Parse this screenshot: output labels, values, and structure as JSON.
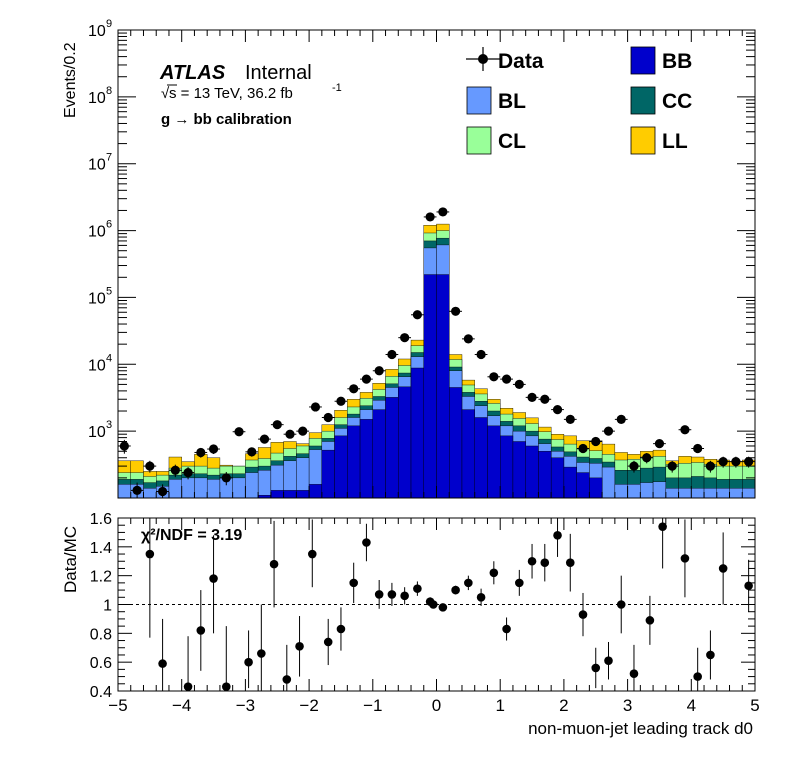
{
  "chart_data": [
    {
      "type": "stacked-histogram",
      "ylabel": "Events/0.2",
      "log_scale": true,
      "ylim": [
        100,
        1000000000
      ],
      "xlim": [
        -5,
        5
      ],
      "yticks": [
        {
          "v": 1000,
          "base": "10",
          "exp": "3"
        },
        {
          "v": 10000,
          "base": "10",
          "exp": "4"
        },
        {
          "v": 100000,
          "base": "10",
          "exp": "5"
        },
        {
          "v": 1000000,
          "base": "10",
          "exp": "6"
        },
        {
          "v": 10000000,
          "base": "10",
          "exp": "7"
        },
        {
          "v": 100000000,
          "base": "10",
          "exp": "8"
        },
        {
          "v": 1000000000,
          "base": "10",
          "exp": "9"
        }
      ],
      "atlas_label": "ATLAS",
      "atlas_sublabel": "Internal",
      "energy_label": "s = 13 TeV, 36.2 fb",
      "lumi_exponent": "-1",
      "sqrt_symbol": "√",
      "process_label": "g  → bb calibration",
      "legend": {
        "data": "Data",
        "bb": "BB",
        "bl": "BL",
        "cc": "CC",
        "cl": "CL",
        "ll": "LL"
      },
      "colors": {
        "bb": "#0000cc",
        "bl": "#6699ff",
        "cc": "#006666",
        "cl": "#99ff99",
        "ll": "#ffcc00"
      },
      "bin_width": 0.2,
      "x_bin_low": [
        -5.0,
        -4.8,
        -4.6,
        -4.4,
        -4.2,
        -4.0,
        -3.8,
        -3.6,
        -3.4,
        -3.2,
        -3.0,
        -2.8,
        -2.6,
        -2.4,
        -2.2,
        -2.0,
        -1.8,
        -1.6,
        -1.4,
        -1.2,
        -1.0,
        -0.8,
        -0.6,
        -0.4,
        -0.2,
        0.0,
        0.2,
        0.4,
        0.6,
        0.8,
        1.0,
        1.2,
        1.4,
        1.6,
        1.8,
        2.0,
        2.2,
        2.4,
        2.6,
        2.8,
        3.0,
        3.2,
        3.4,
        3.6,
        3.8,
        4.0,
        4.2,
        4.4,
        4.6,
        4.8
      ],
      "stack_BB": [
        100,
        100,
        100,
        100,
        100,
        100,
        100,
        100,
        100,
        100,
        100,
        110,
        130,
        130,
        130,
        160,
        520,
        850,
        1200,
        1500,
        2100,
        3200,
        4600,
        8800,
        220000,
        220000,
        4500,
        2100,
        1600,
        1200,
        850,
        700,
        600,
        500,
        400,
        290,
        240,
        200,
        100,
        100,
        100,
        100,
        100,
        100,
        100,
        100,
        100,
        100,
        100,
        100
      ],
      "stack_BL": [
        160,
        160,
        140,
        150,
        190,
        200,
        200,
        190,
        200,
        200,
        240,
        260,
        310,
        360,
        400,
        530,
        700,
        1100,
        1600,
        2100,
        2900,
        4500,
        6500,
        13000,
        550000,
        610000,
        8000,
        3300,
        2400,
        1700,
        1200,
        1000,
        850,
        650,
        500,
        420,
        340,
        330,
        290,
        160,
        160,
        170,
        175,
        140,
        140,
        140,
        140,
        140,
        140,
        140
      ],
      "stack_CC": [
        190,
        190,
        170,
        180,
        220,
        230,
        230,
        220,
        230,
        230,
        290,
        300,
        360,
        420,
        460,
        600,
        780,
        1250,
        1800,
        2400,
        3300,
        5100,
        7400,
        15000,
        700000,
        770000,
        9100,
        3800,
        2800,
        2000,
        1400,
        1200,
        1000,
        760,
        580,
        490,
        410,
        390,
        345,
        260,
        260,
        280,
        290,
        200,
        200,
        210,
        200,
        190,
        190,
        190
      ],
      "stack_CL": [
        240,
        240,
        210,
        220,
        280,
        300,
        300,
        280,
        300,
        300,
        370,
        390,
        470,
        550,
        600,
        780,
        1000,
        1600,
        2300,
        3100,
        4200,
        6600,
        9600,
        19000,
        920000,
        1000000,
        11800,
        4900,
        3600,
        2600,
        1800,
        1550,
        1300,
        980,
        750,
        640,
        540,
        510,
        450,
        370,
        380,
        410,
        420,
        320,
        330,
        340,
        320,
        300,
        300,
        300
      ],
      "stack_LL": [
        360,
        360,
        250,
        250,
        410,
        350,
        450,
        400,
        310,
        300,
        460,
        570,
        680,
        700,
        650,
        950,
        1250,
        2050,
        3000,
        3800,
        5200,
        8400,
        12000,
        23000,
        1200000,
        1250000,
        14000,
        5800,
        4300,
        3000,
        2200,
        1900,
        1580,
        1150,
        900,
        850,
        720,
        720,
        640,
        480,
        450,
        500,
        520,
        360,
        420,
        410,
        380,
        370,
        350,
        370
      ],
      "data_points": [
        {
          "x": -4.9,
          "y": 600,
          "ey": 140
        },
        {
          "x": -4.7,
          "y": 130,
          "ey": 40
        },
        {
          "x": -4.5,
          "y": 300,
          "ey": 60
        },
        {
          "x": -4.3,
          "y": 125,
          "ey": 35
        },
        {
          "x": -4.1,
          "y": 260,
          "ey": 55
        },
        {
          "x": -3.9,
          "y": 240,
          "ey": 50
        },
        {
          "x": -3.7,
          "y": 480,
          "ey": 80
        },
        {
          "x": -3.5,
          "y": 540,
          "ey": 85
        },
        {
          "x": -3.3,
          "y": 200,
          "ey": 45
        },
        {
          "x": -3.1,
          "y": 980,
          "ey": 120
        },
        {
          "x": -2.9,
          "y": 490,
          "ey": 75
        },
        {
          "x": -2.7,
          "y": 760,
          "ey": 100
        },
        {
          "x": -2.5,
          "y": 1250,
          "ey": 130
        },
        {
          "x": -2.3,
          "y": 900,
          "ey": 100
        },
        {
          "x": -2.1,
          "y": 1000,
          "ey": 110
        },
        {
          "x": -1.9,
          "y": 2300,
          "ey": 170
        },
        {
          "x": -1.7,
          "y": 1600,
          "ey": 140
        },
        {
          "x": -1.5,
          "y": 2800,
          "ey": 190
        },
        {
          "x": -1.3,
          "y": 4300,
          "ey": 230
        },
        {
          "x": -1.1,
          "y": 6000,
          "ey": 280
        },
        {
          "x": -0.9,
          "y": 8000,
          "ey": 320
        },
        {
          "x": -0.7,
          "y": 14000,
          "ey": 420
        },
        {
          "x": -0.5,
          "y": 25000,
          "ey": 560
        },
        {
          "x": -0.3,
          "y": 55000,
          "ey": 800
        },
        {
          "x": -0.1,
          "y": 1600000,
          "ey": 4000
        },
        {
          "x": 0.1,
          "y": 1900000,
          "ey": 4400
        },
        {
          "x": 0.3,
          "y": 62000,
          "ey": 850
        },
        {
          "x": 0.5,
          "y": 24000,
          "ey": 550
        },
        {
          "x": 0.7,
          "y": 14000,
          "ey": 420
        },
        {
          "x": 0.9,
          "y": 6500,
          "ey": 290
        },
        {
          "x": 1.1,
          "y": 6000,
          "ey": 280
        },
        {
          "x": 1.3,
          "y": 5000,
          "ey": 250
        },
        {
          "x": 1.5,
          "y": 3200,
          "ey": 200
        },
        {
          "x": 1.7,
          "y": 3000,
          "ey": 190
        },
        {
          "x": 1.9,
          "y": 2100,
          "ey": 160
        },
        {
          "x": 2.1,
          "y": 1500,
          "ey": 135
        },
        {
          "x": 2.3,
          "y": 550,
          "ey": 80
        },
        {
          "x": 2.5,
          "y": 700,
          "ey": 90
        },
        {
          "x": 2.7,
          "y": 1000,
          "ey": 110
        },
        {
          "x": 2.9,
          "y": 1500,
          "ey": 130
        },
        {
          "x": 3.1,
          "y": 300,
          "ey": 60
        },
        {
          "x": 3.3,
          "y": 400,
          "ey": 70
        },
        {
          "x": 3.5,
          "y": 650,
          "ey": 90
        },
        {
          "x": 3.7,
          "y": 300,
          "ey": 60
        },
        {
          "x": 3.9,
          "y": 1050,
          "ey": 110
        },
        {
          "x": 4.1,
          "y": 550,
          "ey": 80
        },
        {
          "x": 4.3,
          "y": 300,
          "ey": 60
        },
        {
          "x": 4.5,
          "y": 350,
          "ey": 65
        },
        {
          "x": 4.7,
          "y": 350,
          "ey": 65
        },
        {
          "x": 4.9,
          "y": 350,
          "ey": 65
        }
      ]
    },
    {
      "type": "scatter",
      "ylabel": "Data/MC",
      "xlabel": "non-muon-jet leading track d0",
      "xlim": [
        -5,
        5
      ],
      "ylim": [
        0.4,
        1.6
      ],
      "reference_line": 1,
      "stat_label": "χ²/NDF = 3.19",
      "x_ticks": [
        -5,
        -4,
        -3,
        -2,
        -1,
        0,
        1,
        2,
        3,
        4,
        5
      ],
      "x_tick_labels": [
        "−5",
        "−4",
        "−3",
        "−2",
        "−1",
        "0",
        "1",
        "2",
        "3",
        "4",
        "5"
      ],
      "y_ticks": [
        0.4,
        0.6,
        0.8,
        1,
        1.2,
        1.4,
        1.6
      ],
      "y_tick_labels": [
        "0.4",
        "0.6",
        "0.8",
        "1",
        "1.2",
        "1.4",
        "1.6"
      ],
      "points": [
        {
          "x": -4.5,
          "y": 1.35,
          "lo": 0.77,
          "hi": 1.6
        },
        {
          "x": -4.3,
          "y": 0.59,
          "lo": 0.4,
          "hi": 0.9
        },
        {
          "x": -3.9,
          "y": 0.43,
          "lo": 0.4,
          "hi": 0.78
        },
        {
          "x": -3.7,
          "y": 0.82,
          "lo": 0.54,
          "hi": 1.1
        },
        {
          "x": -3.5,
          "y": 1.18,
          "lo": 0.8,
          "hi": 1.48
        },
        {
          "x": -3.3,
          "y": 0.43,
          "lo": 0.4,
          "hi": 0.85
        },
        {
          "x": -2.95,
          "y": 0.6,
          "lo": 0.42,
          "hi": 0.82
        },
        {
          "x": -2.75,
          "y": 0.66,
          "lo": 0.4,
          "hi": 1.0
        },
        {
          "x": -2.55,
          "y": 1.28,
          "lo": 0.98,
          "hi": 1.58
        },
        {
          "x": -2.35,
          "y": 0.48,
          "lo": 0.4,
          "hi": 0.72
        },
        {
          "x": -2.15,
          "y": 0.71,
          "lo": 0.5,
          "hi": 0.92
        },
        {
          "x": -1.95,
          "y": 1.35,
          "lo": 1.12,
          "hi": 1.59
        },
        {
          "x": -1.7,
          "y": 0.74,
          "lo": 0.58,
          "hi": 0.9
        },
        {
          "x": -1.5,
          "y": 0.83,
          "lo": 0.68,
          "hi": 0.98
        },
        {
          "x": -1.3,
          "y": 1.15,
          "lo": 1.01,
          "hi": 1.29
        },
        {
          "x": -1.1,
          "y": 1.43,
          "lo": 1.3,
          "hi": 1.56
        },
        {
          "x": -0.9,
          "y": 1.07,
          "lo": 0.97,
          "hi": 1.17
        },
        {
          "x": -0.7,
          "y": 1.07,
          "lo": 0.99,
          "hi": 1.15
        },
        {
          "x": -0.5,
          "y": 1.06,
          "lo": 1.0,
          "hi": 1.12
        },
        {
          "x": -0.3,
          "y": 1.11,
          "lo": 1.06,
          "hi": 1.16
        },
        {
          "x": -0.1,
          "y": 1.02,
          "lo": 0.99,
          "hi": 1.05
        },
        {
          "x": -0.05,
          "y": 1.0,
          "lo": 0.98,
          "hi": 1.02
        },
        {
          "x": 0.1,
          "y": 0.98,
          "lo": 0.96,
          "hi": 1.0
        },
        {
          "x": 0.3,
          "y": 1.1,
          "lo": 1.07,
          "hi": 1.13
        },
        {
          "x": 0.5,
          "y": 1.15,
          "lo": 1.1,
          "hi": 1.2
        },
        {
          "x": 0.7,
          "y": 1.05,
          "lo": 0.99,
          "hi": 1.11
        },
        {
          "x": 0.9,
          "y": 1.22,
          "lo": 1.14,
          "hi": 1.3
        },
        {
          "x": 1.1,
          "y": 0.83,
          "lo": 0.75,
          "hi": 0.91
        },
        {
          "x": 1.3,
          "y": 1.15,
          "lo": 1.06,
          "hi": 1.24
        },
        {
          "x": 1.5,
          "y": 1.3,
          "lo": 1.18,
          "hi": 1.42
        },
        {
          "x": 1.7,
          "y": 1.29,
          "lo": 1.16,
          "hi": 1.42
        },
        {
          "x": 1.9,
          "y": 1.48,
          "lo": 1.33,
          "hi": 1.6
        },
        {
          "x": 2.1,
          "y": 1.29,
          "lo": 1.09,
          "hi": 1.49
        },
        {
          "x": 2.3,
          "y": 0.93,
          "lo": 0.78,
          "hi": 1.08
        },
        {
          "x": 2.5,
          "y": 0.56,
          "lo": 0.42,
          "hi": 0.7
        },
        {
          "x": 2.7,
          "y": 0.61,
          "lo": 0.48,
          "hi": 0.74
        },
        {
          "x": 2.9,
          "y": 1.0,
          "lo": 0.8,
          "hi": 1.2
        },
        {
          "x": 3.1,
          "y": 0.52,
          "lo": 0.4,
          "hi": 0.72
        },
        {
          "x": 3.35,
          "y": 0.89,
          "lo": 0.72,
          "hi": 1.06
        },
        {
          "x": 3.55,
          "y": 1.54,
          "lo": 1.25,
          "hi": 1.6
        },
        {
          "x": 3.9,
          "y": 1.32,
          "lo": 1.05,
          "hi": 1.59
        },
        {
          "x": 4.1,
          "y": 0.5,
          "lo": 0.4,
          "hi": 0.7
        },
        {
          "x": 4.3,
          "y": 0.65,
          "lo": 0.48,
          "hi": 0.82
        },
        {
          "x": 4.5,
          "y": 1.25,
          "lo": 1.0,
          "hi": 1.5
        },
        {
          "x": 4.9,
          "y": 1.13,
          "lo": 0.95,
          "hi": 1.31
        }
      ]
    }
  ]
}
